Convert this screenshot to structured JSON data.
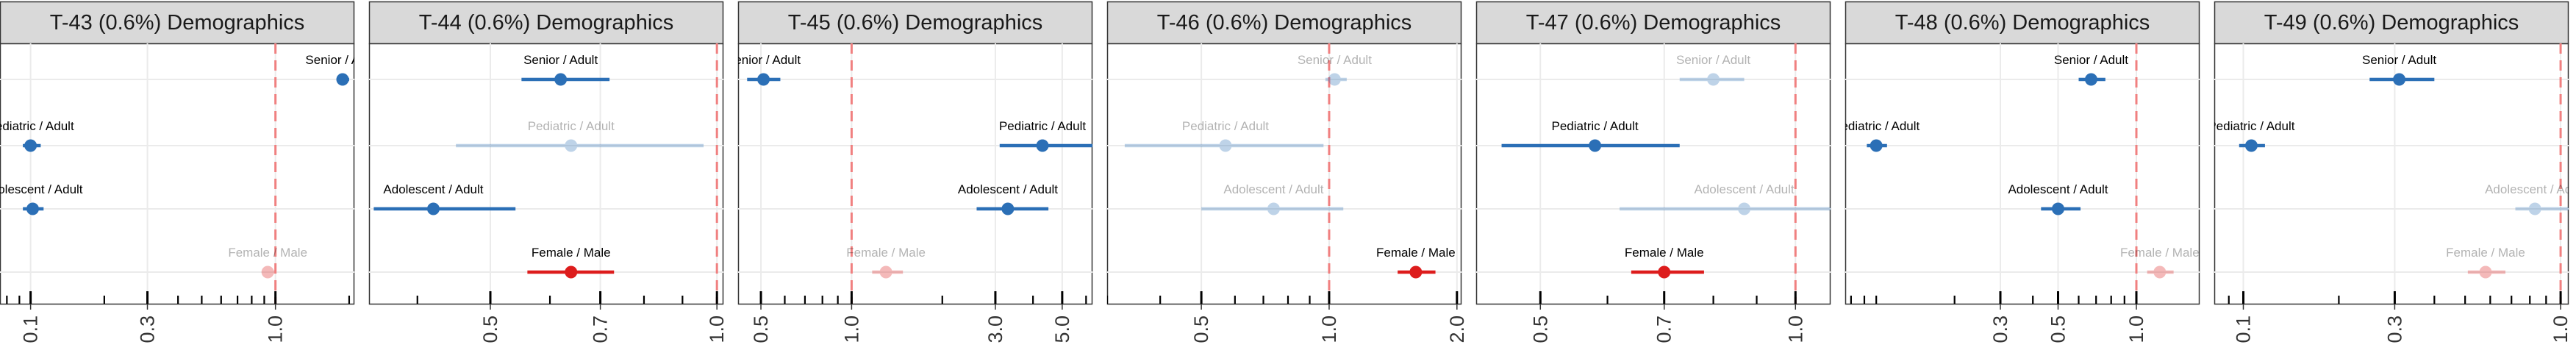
{
  "colors": {
    "blue": "#2b6fb6",
    "red": "#dd1c1c",
    "reference_line": "#f08080",
    "strip_fill": "#d9d9d9",
    "grid": "#ebebeb"
  },
  "chart_data": [
    {
      "type": "forest",
      "title": "T-43 (0.6%) Demographics",
      "xscale": "log",
      "xlim": [
        0.075,
        2.1
      ],
      "ticks": [
        "0.1",
        "0.3",
        "1.0"
      ],
      "tick_values": [
        0.1,
        0.3,
        1.0
      ],
      "reference": 1.0,
      "series": [
        {
          "label": "Senior / Adult",
          "estimate": 1.88,
          "lo": 1.78,
          "hi": 2.0,
          "color": "blue",
          "faded": false
        },
        {
          "label": "Pediatric / Adult",
          "estimate": 0.1,
          "lo": 0.093,
          "hi": 0.11,
          "color": "blue",
          "faded": false
        },
        {
          "label": "Adolescent / Adult",
          "estimate": 0.102,
          "lo": 0.093,
          "hi": 0.113,
          "color": "blue",
          "faded": false
        },
        {
          "label": "Female / Male",
          "estimate": 0.93,
          "lo": 0.88,
          "hi": 0.99,
          "color": "red",
          "faded": true
        }
      ]
    },
    {
      "type": "forest",
      "title": "T-44 (0.6%) Demographics",
      "xscale": "log",
      "xlim": [
        0.345,
        1.02
      ],
      "ticks": [
        "0.5",
        "0.7",
        "1.0"
      ],
      "tick_values": [
        0.5,
        0.7,
        1.0
      ],
      "reference": 1.0,
      "series": [
        {
          "label": "Senior / Adult",
          "estimate": 0.62,
          "lo": 0.55,
          "hi": 0.72,
          "color": "blue",
          "faded": false
        },
        {
          "label": "Pediatric / Adult",
          "estimate": 0.64,
          "lo": 0.45,
          "hi": 0.96,
          "color": "blue",
          "faded": true
        },
        {
          "label": "Adolescent / Adult",
          "estimate": 0.42,
          "lo": 0.35,
          "hi": 0.54,
          "color": "blue",
          "faded": false
        },
        {
          "label": "Female / Male",
          "estimate": 0.64,
          "lo": 0.56,
          "hi": 0.73,
          "color": "red",
          "faded": false
        }
      ]
    },
    {
      "type": "forest",
      "title": "T-45 (0.6%) Demographics",
      "xscale": "log",
      "xlim": [
        0.42,
        6.3
      ],
      "ticks": [
        "0.5",
        "1.0",
        "3.0",
        "5.0"
      ],
      "tick_values": [
        0.5,
        1.0,
        3.0,
        5.0
      ],
      "reference": 1.0,
      "series": [
        {
          "label": "Senior / Adult",
          "estimate": 0.51,
          "lo": 0.45,
          "hi": 0.58,
          "color": "blue",
          "faded": false
        },
        {
          "label": "Pediatric / Adult",
          "estimate": 4.3,
          "lo": 3.1,
          "hi": 6.3,
          "color": "blue",
          "faded": false
        },
        {
          "label": "Adolescent / Adult",
          "estimate": 3.3,
          "lo": 2.6,
          "hi": 4.5,
          "color": "blue",
          "faded": false
        },
        {
          "label": "Female / Male",
          "estimate": 1.3,
          "lo": 1.17,
          "hi": 1.48,
          "color": "red",
          "faded": true
        }
      ]
    },
    {
      "type": "forest",
      "title": "T-46 (0.6%) Demographics",
      "xscale": "log",
      "xlim": [
        0.3,
        2.05
      ],
      "ticks": [
        "0.5",
        "1.0",
        "2.0"
      ],
      "tick_values": [
        0.5,
        1.0,
        2.0
      ],
      "reference": 1.0,
      "series": [
        {
          "label": "Senior / Adult",
          "estimate": 1.03,
          "lo": 0.98,
          "hi": 1.1,
          "color": "blue",
          "faded": true
        },
        {
          "label": "Pediatric / Adult",
          "estimate": 0.57,
          "lo": 0.33,
          "hi": 0.97,
          "color": "blue",
          "faded": true
        },
        {
          "label": "Adolescent / Adult",
          "estimate": 0.74,
          "lo": 0.5,
          "hi": 1.08,
          "color": "blue",
          "faded": true
        },
        {
          "label": "Female / Male",
          "estimate": 1.6,
          "lo": 1.45,
          "hi": 1.78,
          "color": "red",
          "faded": false
        }
      ]
    },
    {
      "type": "forest",
      "title": "T-47 (0.6%) Demographics",
      "xscale": "log",
      "xlim": [
        0.42,
        1.1
      ],
      "ticks": [
        "0.5",
        "0.7",
        "1.0"
      ],
      "tick_values": [
        0.5,
        0.7,
        1.0
      ],
      "reference": 1.0,
      "series": [
        {
          "label": "Senior / Adult",
          "estimate": 0.8,
          "lo": 0.73,
          "hi": 0.87,
          "color": "blue",
          "faded": true
        },
        {
          "label": "Pediatric / Adult",
          "estimate": 0.58,
          "lo": 0.45,
          "hi": 0.73,
          "color": "blue",
          "faded": false
        },
        {
          "label": "Adolescent / Adult",
          "estimate": 0.87,
          "lo": 0.62,
          "hi": 1.22,
          "color": "blue",
          "faded": true
        },
        {
          "label": "Female / Male",
          "estimate": 0.7,
          "lo": 0.64,
          "hi": 0.78,
          "color": "red",
          "faded": false
        }
      ]
    },
    {
      "type": "forest",
      "title": "T-48 (0.6%) Demographics",
      "xscale": "log",
      "xlim": [
        0.076,
        1.75
      ],
      "ticks": [
        "0.3",
        "0.5",
        "1.0"
      ],
      "tick_values": [
        0.3,
        0.5,
        1.0
      ],
      "reference": 1.0,
      "series": [
        {
          "label": "Senior / Adult",
          "estimate": 0.67,
          "lo": 0.6,
          "hi": 0.76,
          "color": "blue",
          "faded": false
        },
        {
          "label": "Pediatric / Adult",
          "estimate": 0.1,
          "lo": 0.092,
          "hi": 0.11,
          "color": "blue",
          "faded": false
        },
        {
          "label": "Adolescent / Adult",
          "estimate": 0.5,
          "lo": 0.43,
          "hi": 0.61,
          "color": "blue",
          "faded": false
        },
        {
          "label": "Female / Male",
          "estimate": 1.23,
          "lo": 1.1,
          "hi": 1.39,
          "color": "red",
          "faded": true
        }
      ]
    },
    {
      "type": "forest",
      "title": "T-49 (0.6%) Demographics",
      "xscale": "log",
      "xlim": [
        0.081,
        1.06
      ],
      "ticks": [
        "0.1",
        "0.3",
        "1.0"
      ],
      "tick_values": [
        0.1,
        0.3,
        1.0
      ],
      "reference": 1.0,
      "series": [
        {
          "label": "Senior / Adult",
          "estimate": 0.31,
          "lo": 0.25,
          "hi": 0.4,
          "color": "blue",
          "faded": false
        },
        {
          "label": "Pediatric / Adult",
          "estimate": 0.106,
          "lo": 0.097,
          "hi": 0.117,
          "color": "blue",
          "faded": false
        },
        {
          "label": "Adolescent / Adult",
          "estimate": 0.83,
          "lo": 0.72,
          "hi": 1.06,
          "color": "blue",
          "faded": true
        },
        {
          "label": "Female / Male",
          "estimate": 0.58,
          "lo": 0.51,
          "hi": 0.67,
          "color": "red",
          "faded": true
        }
      ]
    }
  ]
}
